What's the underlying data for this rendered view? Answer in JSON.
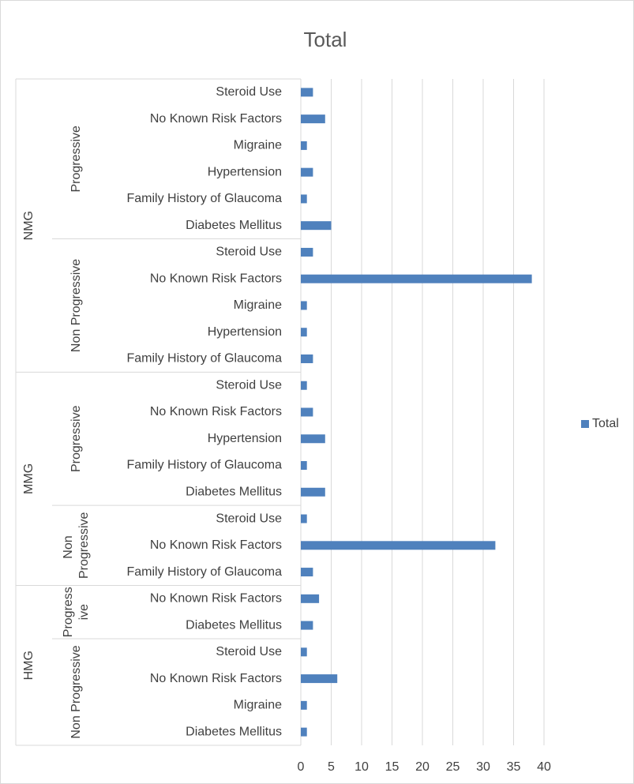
{
  "chart_data": {
    "type": "bar",
    "title": "Total",
    "series_name": "Total",
    "color": "#4f81bd",
    "xlim": [
      0,
      40
    ],
    "xticks": [
      0,
      5,
      10,
      15,
      20,
      25,
      30,
      35,
      40
    ],
    "grid": true,
    "legend": "right",
    "groups": [
      {
        "name": "NMG",
        "subgroups": [
          {
            "name": "Progressive",
            "categories": [
              "Steroid Use",
              "No Known Risk Factors",
              "Migraine",
              "Hypertension",
              "Family History of Glaucoma",
              "Diabetes Mellitus"
            ],
            "values": [
              2,
              4,
              1,
              2,
              1,
              5
            ]
          },
          {
            "name": "Non Progressive",
            "categories": [
              "Steroid Use",
              "No Known Risk Factors",
              "Migraine",
              "Hypertension",
              "Family History of Glaucoma"
            ],
            "values": [
              2,
              38,
              1,
              1,
              2
            ]
          }
        ]
      },
      {
        "name": "MMG",
        "subgroups": [
          {
            "name": "Progressive",
            "categories": [
              "Steroid Use",
              "No Known Risk Factors",
              "Hypertension",
              "Family History of Glaucoma",
              "Diabetes Mellitus"
            ],
            "values": [
              1,
              2,
              4,
              1,
              4
            ]
          },
          {
            "name": "Non Progressive",
            "categories": [
              "Steroid Use",
              "No Known Risk Factors",
              "Family History of Glaucoma"
            ],
            "values": [
              1,
              32,
              2
            ]
          }
        ]
      },
      {
        "name": "HMG",
        "subgroups": [
          {
            "name": "Progressive",
            "categories": [
              "No Known Risk Factors",
              "Diabetes Mellitus"
            ],
            "values": [
              3,
              2
            ]
          },
          {
            "name": "Non Progressive",
            "categories": [
              "Steroid Use",
              "No Known Risk Factors",
              "Migraine",
              "Diabetes Mellitus"
            ],
            "values": [
              1,
              6,
              1,
              1
            ]
          }
        ]
      }
    ]
  }
}
